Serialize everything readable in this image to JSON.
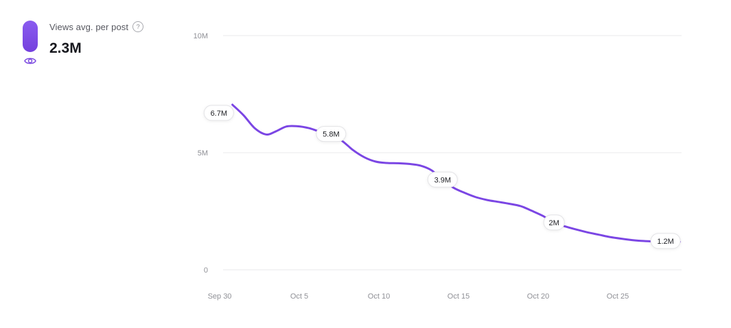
{
  "header": {
    "metric_label": "Views avg. per post",
    "help_icon": "?",
    "metric_value": "2.3M"
  },
  "chart_data": {
    "type": "line",
    "title": "Views avg. per post",
    "series_name": "Views avg. per post",
    "line_color": "#7b46e4",
    "grid_color": "#e9e9eb",
    "xlabel": "",
    "ylabel": "",
    "ylim": [
      0,
      10000000
    ],
    "grid": true,
    "legend_position": "none",
    "yticks": [
      "10M",
      "5M",
      "0"
    ],
    "ytick_values_m": [
      10,
      5,
      0
    ],
    "x_tick_labels": [
      "Sep 30",
      "Oct 5",
      "Oct 10",
      "Oct 15",
      "Oct 20",
      "Oct 25"
    ],
    "x_tick_days": [
      0,
      5,
      10,
      15,
      20,
      25
    ],
    "points": [
      {
        "d": 0.8,
        "v": 7.05
      },
      {
        "d": 1.5,
        "v": 6.6
      },
      {
        "d": 2.2,
        "v": 6.05
      },
      {
        "d": 2.9,
        "v": 5.78
      },
      {
        "d": 3.5,
        "v": 5.9
      },
      {
        "d": 4.2,
        "v": 6.12
      },
      {
        "d": 4.9,
        "v": 6.13
      },
      {
        "d": 5.6,
        "v": 6.05
      },
      {
        "d": 6.3,
        "v": 5.9
      },
      {
        "d": 7.0,
        "v": 5.8
      },
      {
        "d": 7.7,
        "v": 5.5
      },
      {
        "d": 8.4,
        "v": 5.1
      },
      {
        "d": 9.1,
        "v": 4.8
      },
      {
        "d": 9.8,
        "v": 4.62
      },
      {
        "d": 10.5,
        "v": 4.56
      },
      {
        "d": 11.2,
        "v": 4.55
      },
      {
        "d": 11.9,
        "v": 4.52
      },
      {
        "d": 12.6,
        "v": 4.45
      },
      {
        "d": 13.3,
        "v": 4.25
      },
      {
        "d": 14.0,
        "v": 3.85
      },
      {
        "d": 14.7,
        "v": 3.5
      },
      {
        "d": 15.4,
        "v": 3.28
      },
      {
        "d": 16.1,
        "v": 3.1
      },
      {
        "d": 16.8,
        "v": 2.98
      },
      {
        "d": 17.5,
        "v": 2.9
      },
      {
        "d": 18.2,
        "v": 2.82
      },
      {
        "d": 18.9,
        "v": 2.72
      },
      {
        "d": 19.6,
        "v": 2.52
      },
      {
        "d": 20.3,
        "v": 2.3
      },
      {
        "d": 21.0,
        "v": 2.02
      },
      {
        "d": 21.7,
        "v": 1.85
      },
      {
        "d": 22.4,
        "v": 1.72
      },
      {
        "d": 23.1,
        "v": 1.6
      },
      {
        "d": 23.8,
        "v": 1.5
      },
      {
        "d": 24.5,
        "v": 1.4
      },
      {
        "d": 25.2,
        "v": 1.33
      },
      {
        "d": 25.9,
        "v": 1.27
      },
      {
        "d": 26.6,
        "v": 1.23
      },
      {
        "d": 27.3,
        "v": 1.21
      },
      {
        "d": 28.9,
        "v": 1.2
      }
    ],
    "annotations": [
      {
        "label": "6.7M",
        "d": -0.05,
        "v": 6.7
      },
      {
        "label": "5.8M",
        "d": 7.0,
        "v": 5.8
      },
      {
        "label": "3.9M",
        "d": 14.0,
        "v": 3.85
      },
      {
        "label": "2M",
        "d": 21.0,
        "v": 2.02
      },
      {
        "label": "1.2M",
        "d": 28.0,
        "v": 1.23
      }
    ]
  }
}
